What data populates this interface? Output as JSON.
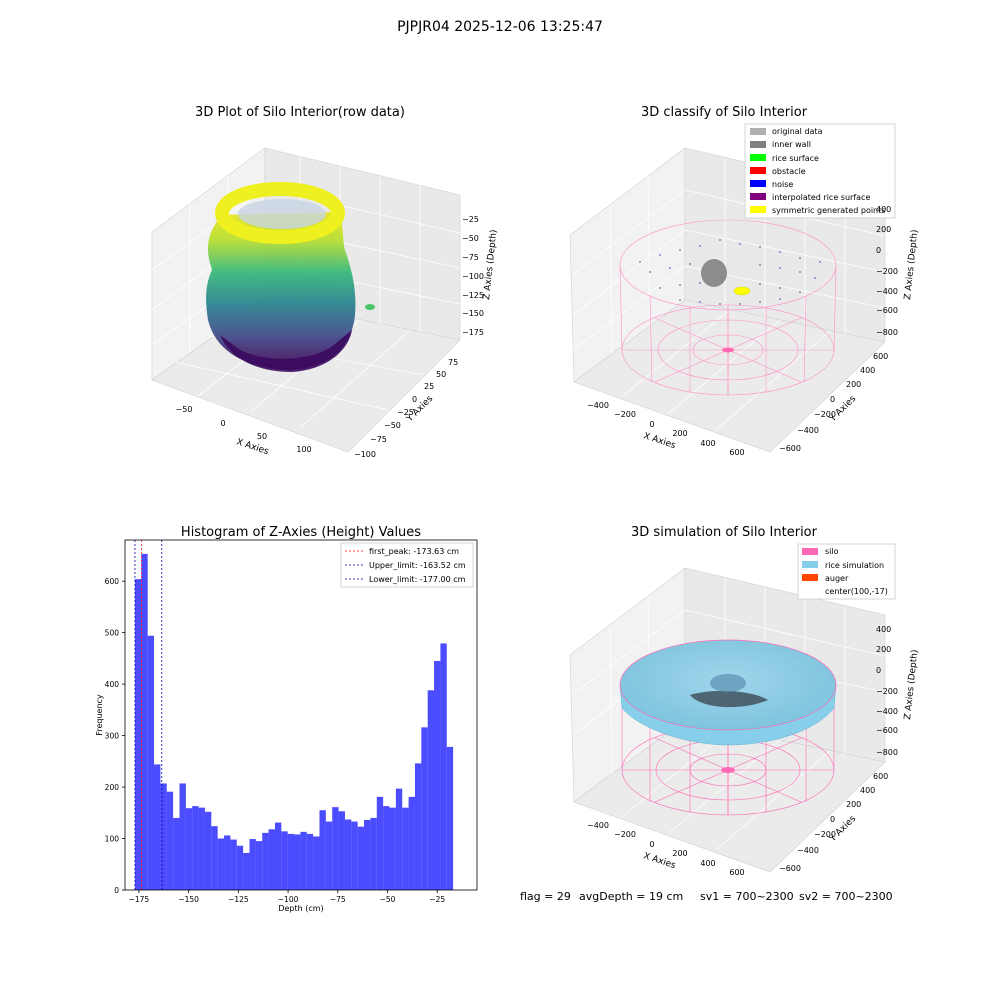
{
  "suptitle": "PJPJR04 2025-12-06 13:25:47",
  "chart_data": [
    {
      "type": "scatter",
      "title": "3D Plot of Silo Interior(row data)",
      "xlabel": "X Axies",
      "ylabel": "Y Axies",
      "zlabel": "Z Axies (Depth)",
      "x_ticks": [
        "−50",
        "0",
        "50",
        "100"
      ],
      "y_ticks": [
        "−100",
        "−75",
        "−50",
        "−25",
        "0",
        "25",
        "50",
        "75"
      ],
      "z_ticks": [
        "−175",
        "−150",
        "−125",
        "−100",
        "−75",
        "−50",
        "−25"
      ],
      "xlim": [
        -90,
        130
      ],
      "ylim": [
        -100,
        90
      ],
      "zlim": [
        -190,
        -10
      ],
      "colormap": "viridis",
      "grid": true
    },
    {
      "type": "scatter",
      "title": "3D classify of Silo Interior",
      "xlabel": "X Axies",
      "ylabel": "Y Axies",
      "zlabel": "Z Axies (Depth)",
      "x_ticks": [
        "−400",
        "−200",
        "0",
        "200",
        "400",
        "600"
      ],
      "y_ticks": [
        "−600",
        "−400",
        "−200",
        "0",
        "200",
        "400",
        "600"
      ],
      "z_ticks": [
        "−800",
        "−600",
        "−400",
        "−200",
        "0",
        "200",
        "400"
      ],
      "legend_position": "top-right",
      "legend": [
        {
          "label": "original data",
          "color": "#b0b0b0"
        },
        {
          "label": "inner wall",
          "color": "#808080"
        },
        {
          "label": "rice surface",
          "color": "#00ff00"
        },
        {
          "label": "obstacle",
          "color": "#ff0000"
        },
        {
          "label": "noise",
          "color": "#0000ff"
        },
        {
          "label": "interpolated rice surface",
          "color": "#800080"
        },
        {
          "label": "symmetric generated points",
          "color": "#ffff00"
        }
      ],
      "grid": true
    },
    {
      "type": "bar",
      "title": "Histogram of Z-Axies (Height) Values",
      "xlabel": "Depth (cm)",
      "ylabel": "Frequency",
      "xlim": [
        -182,
        -5
      ],
      "ylim": [
        0,
        680
      ],
      "x_ticks": [
        -175,
        -150,
        -125,
        -100,
        -75,
        -50,
        -25
      ],
      "x_tick_labels": [
        "−175",
        "−150",
        "−125",
        "−100",
        "−75",
        "−50",
        "−25"
      ],
      "y_ticks": [
        0,
        100,
        200,
        300,
        400,
        500,
        600
      ],
      "y_tick_labels": [
        "0",
        "100",
        "200",
        "300",
        "400",
        "500",
        "600"
      ],
      "bin_start": -177,
      "bin_width": 3.2,
      "values": [
        604,
        653,
        494,
        244,
        207,
        191,
        140,
        207,
        159,
        163,
        160,
        152,
        124,
        100,
        106,
        98,
        86,
        72,
        99,
        95,
        111,
        118,
        131,
        114,
        109,
        108,
        113,
        109,
        104,
        155,
        133,
        161,
        153,
        137,
        133,
        123,
        136,
        140,
        181,
        163,
        160,
        197,
        160,
        181,
        246,
        316,
        388,
        445,
        479,
        278
      ],
      "bar_color": "#0000ff",
      "bar_opacity": 0.7,
      "vlines": [
        {
          "value": -173.63,
          "label": "first_peak: -173.63 cm",
          "color": "#ff0000"
        },
        {
          "value": -163.52,
          "label": "Upper_limit: -163.52 cm",
          "color": "#0000aa"
        },
        {
          "value": -177.0,
          "label": "Lower_limit: -177.00 cm",
          "color": "#0000aa"
        }
      ],
      "legend_position": "top-right"
    },
    {
      "type": "scatter",
      "title": "3D simulation of Silo Interior",
      "xlabel": "X Axies",
      "ylabel": "Y Axies",
      "zlabel": "Z Axies (Depth)",
      "x_ticks": [
        "−400",
        "−200",
        "0",
        "200",
        "400",
        "600"
      ],
      "y_ticks": [
        "−600",
        "−400",
        "−200",
        "0",
        "200",
        "400",
        "600"
      ],
      "z_ticks": [
        "−800",
        "−600",
        "−400",
        "−200",
        "0",
        "200",
        "400"
      ],
      "legend_position": "top-right",
      "legend": [
        {
          "label": "silo",
          "color": "#ff69b4"
        },
        {
          "label": "rice simulation",
          "color": "#87ceeb"
        },
        {
          "label": "auger",
          "color": "#ff4500"
        },
        {
          "label": "center(100,-17)",
          "color": "none"
        }
      ],
      "grid": true
    }
  ],
  "footer": {
    "flag": "flag = 29",
    "avg_depth": "avgDepth = 19 cm",
    "sv1": "sv1 = 700~2300",
    "sv2": "sv2 = 700~2300"
  }
}
